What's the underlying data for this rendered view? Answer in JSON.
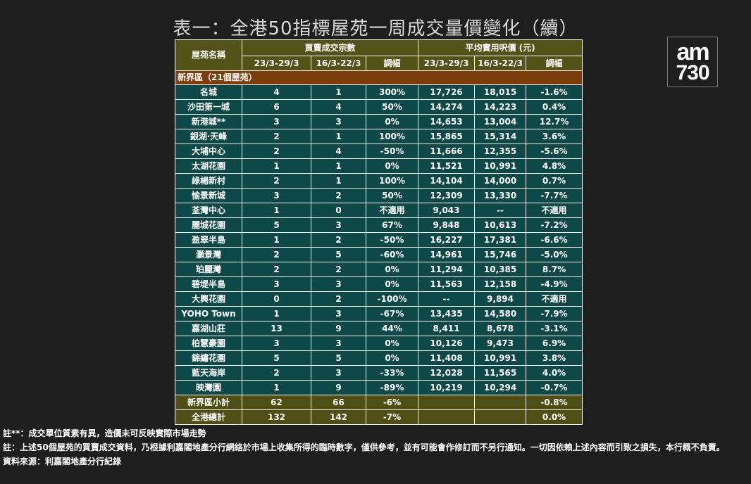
{
  "title": "表一：全港50指標屋苑一周成交量價變化（續）",
  "logo": {
    "line1": "am",
    "line2": "730"
  },
  "table": {
    "headers": {
      "estate": "屋苑名稱",
      "volume_group": "買賣成交宗數",
      "price_group": "平均實用呎價 (元)",
      "period_current": "23/3-29/3",
      "period_previous": "16/3-22/3",
      "change": "調幅"
    },
    "section_label": "新界區（21個屋苑）",
    "rows": [
      {
        "name": "名城",
        "vol_cur": "4",
        "vol_prev": "1",
        "vol_chg": "300%",
        "price_cur": "17,726",
        "price_prev": "18,015",
        "price_chg": "-1.6%"
      },
      {
        "name": "沙田第一城",
        "vol_cur": "6",
        "vol_prev": "4",
        "vol_chg": "50%",
        "price_cur": "14,274",
        "price_prev": "14,223",
        "price_chg": "0.4%"
      },
      {
        "name": "新港城**",
        "vol_cur": "3",
        "vol_prev": "3",
        "vol_chg": "0%",
        "price_cur": "14,653",
        "price_prev": "13,004",
        "price_chg": "12.7%"
      },
      {
        "name": "銀湖‧天峰",
        "vol_cur": "2",
        "vol_prev": "1",
        "vol_chg": "100%",
        "price_cur": "15,865",
        "price_prev": "15,314",
        "price_chg": "3.6%"
      },
      {
        "name": "大埔中心",
        "vol_cur": "2",
        "vol_prev": "4",
        "vol_chg": "-50%",
        "price_cur": "11,666",
        "price_prev": "12,355",
        "price_chg": "-5.6%"
      },
      {
        "name": "太湖花園",
        "vol_cur": "1",
        "vol_prev": "1",
        "vol_chg": "0%",
        "price_cur": "11,521",
        "price_prev": "10,991",
        "price_chg": "4.8%"
      },
      {
        "name": "綠楊新村",
        "vol_cur": "2",
        "vol_prev": "1",
        "vol_chg": "100%",
        "price_cur": "14,104",
        "price_prev": "14,000",
        "price_chg": "0.7%"
      },
      {
        "name": "愉景新城",
        "vol_cur": "3",
        "vol_prev": "2",
        "vol_chg": "50%",
        "price_cur": "12,309",
        "price_prev": "13,330",
        "price_chg": "-7.7%"
      },
      {
        "name": "荃灣中心",
        "vol_cur": "1",
        "vol_prev": "0",
        "vol_chg": "不適用",
        "price_cur": "9,043",
        "price_prev": "--",
        "price_chg": "不適用"
      },
      {
        "name": "麗城花園",
        "vol_cur": "5",
        "vol_prev": "3",
        "vol_chg": "67%",
        "price_cur": "9,848",
        "price_prev": "10,613",
        "price_chg": "-7.2%"
      },
      {
        "name": "盈翠半島",
        "vol_cur": "1",
        "vol_prev": "2",
        "vol_chg": "-50%",
        "price_cur": "16,227",
        "price_prev": "17,381",
        "price_chg": "-6.6%"
      },
      {
        "name": "灝景灣",
        "vol_cur": "2",
        "vol_prev": "5",
        "vol_chg": "-60%",
        "price_cur": "14,961",
        "price_prev": "15,746",
        "price_chg": "-5.0%"
      },
      {
        "name": "珀麗灣",
        "vol_cur": "2",
        "vol_prev": "2",
        "vol_chg": "0%",
        "price_cur": "11,294",
        "price_prev": "10,385",
        "price_chg": "8.7%"
      },
      {
        "name": "碧堤半島",
        "vol_cur": "3",
        "vol_prev": "3",
        "vol_chg": "0%",
        "price_cur": "11,563",
        "price_prev": "12,158",
        "price_chg": "-4.9%"
      },
      {
        "name": "大興花園",
        "vol_cur": "0",
        "vol_prev": "2",
        "vol_chg": "-100%",
        "price_cur": "--",
        "price_prev": "9,894",
        "price_chg": "不適用"
      },
      {
        "name": "YOHO Town",
        "vol_cur": "1",
        "vol_prev": "3",
        "vol_chg": "-67%",
        "price_cur": "13,435",
        "price_prev": "14,580",
        "price_chg": "-7.9%"
      },
      {
        "name": "嘉湖山莊",
        "vol_cur": "13",
        "vol_prev": "9",
        "vol_chg": "44%",
        "price_cur": "8,411",
        "price_prev": "8,678",
        "price_chg": "-3.1%"
      },
      {
        "name": "柏慧豪園",
        "vol_cur": "3",
        "vol_prev": "3",
        "vol_chg": "0%",
        "price_cur": "10,126",
        "price_prev": "9,473",
        "price_chg": "6.9%"
      },
      {
        "name": "錦繡花園",
        "vol_cur": "5",
        "vol_prev": "5",
        "vol_chg": "0%",
        "price_cur": "11,408",
        "price_prev": "10,991",
        "price_chg": "3.8%"
      },
      {
        "name": "藍天海岸",
        "vol_cur": "2",
        "vol_prev": "3",
        "vol_chg": "-33%",
        "price_cur": "12,028",
        "price_prev": "11,565",
        "price_chg": "4.0%"
      },
      {
        "name": "映灣園",
        "vol_cur": "1",
        "vol_prev": "9",
        "vol_chg": "-89%",
        "price_cur": "10,219",
        "price_prev": "10,294",
        "price_chg": "-0.7%"
      }
    ],
    "totals": [
      {
        "name": "新界區小計",
        "vol_cur": "62",
        "vol_prev": "66",
        "vol_chg": "-6%",
        "price_cur": "",
        "price_prev": "",
        "price_chg": "-0.8%"
      },
      {
        "name": "全港總計",
        "vol_cur": "132",
        "vol_prev": "142",
        "vol_chg": "-7%",
        "price_cur": "",
        "price_prev": "",
        "price_chg": "0.0%"
      }
    ]
  },
  "notes": {
    "note1": "註**：成交單位質素有異，造價未可反映實際市場走勢",
    "note2": "註：上述50個屋苑的買賣成交資料，乃根據利嘉閣地產分行網絡於市場上收集所得的臨時數字，僅供參考，並有可能會作修訂而不另行通知。一切因依賴上述內容而引致之損失，本行概不負責。",
    "source": "資料來源：利嘉閣地產分行紀錄"
  }
}
